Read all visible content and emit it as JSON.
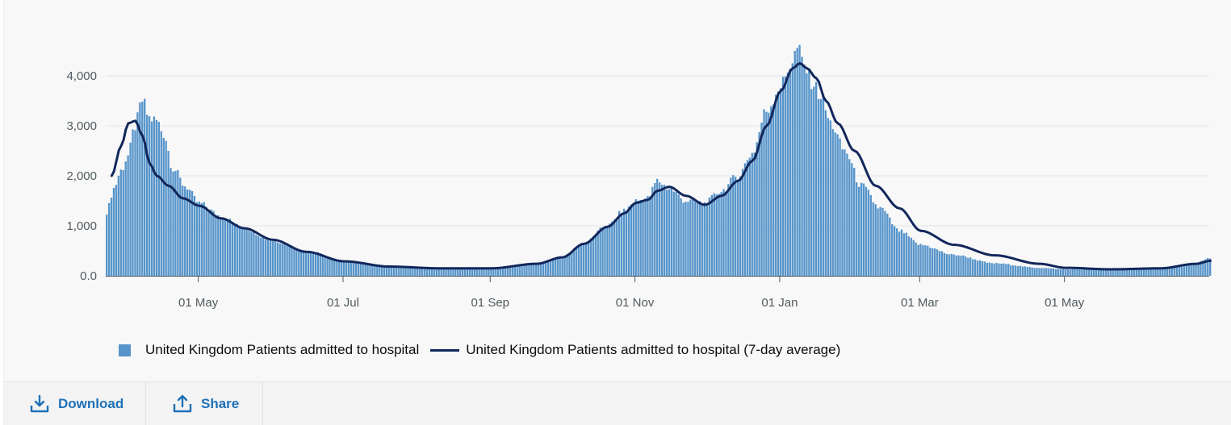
{
  "chart_data": {
    "type": "bar",
    "ylim": [
      0,
      4600
    ],
    "grid": true,
    "legend_position": "bottom-left",
    "y_ticks": [
      "4,000",
      "3,000",
      "2,000",
      "1,000",
      "0.0"
    ],
    "y_tick_values": [
      4000,
      3000,
      2000,
      1000,
      0
    ],
    "x_ticks": [
      "01 May",
      "01 Jul",
      "01 Sep",
      "01 Nov",
      "01 Jan",
      "01 Mar",
      "01 May"
    ],
    "x_tick_dates": [
      "2020-05-01",
      "2020-07-01",
      "2020-09-01",
      "2020-11-01",
      "2021-01-01",
      "2021-03-01",
      "2021-05-01"
    ],
    "x_range": [
      "2020-03-23",
      "2021-07-01"
    ],
    "colors": {
      "bars": "#5694ca",
      "line": "#12275b",
      "grid": "#e4e4e4"
    },
    "series": [
      {
        "name": "United Kingdom Patients admitted to hospital",
        "kind": "bar",
        "x": [
          "2020-03-23",
          "2020-03-26",
          "2020-03-29",
          "2020-04-01",
          "2020-04-04",
          "2020-04-07",
          "2020-04-10",
          "2020-04-13",
          "2020-04-16",
          "2020-04-20",
          "2020-04-25",
          "2020-05-01",
          "2020-05-10",
          "2020-05-20",
          "2020-06-01",
          "2020-06-15",
          "2020-07-01",
          "2020-07-20",
          "2020-08-10",
          "2020-09-01",
          "2020-09-20",
          "2020-10-01",
          "2020-10-10",
          "2020-10-20",
          "2020-10-27",
          "2020-11-01",
          "2020-11-06",
          "2020-11-10",
          "2020-11-15",
          "2020-11-22",
          "2020-11-30",
          "2020-12-07",
          "2020-12-14",
          "2020-12-20",
          "2020-12-26",
          "2021-01-01",
          "2021-01-06",
          "2021-01-08",
          "2021-01-11",
          "2021-01-14",
          "2021-01-18",
          "2021-01-22",
          "2021-01-28",
          "2021-02-04",
          "2021-02-12",
          "2021-02-20",
          "2021-03-01",
          "2021-03-15",
          "2021-04-01",
          "2021-04-20",
          "2021-05-01",
          "2021-05-20",
          "2021-06-10",
          "2021-06-25",
          "2021-07-01"
        ],
        "values": [
          1280,
          1750,
          2100,
          2400,
          3000,
          3500,
          3150,
          3100,
          2850,
          2150,
          1800,
          1450,
          1200,
          950,
          700,
          500,
          300,
          180,
          150,
          160,
          250,
          380,
          650,
          1000,
          1300,
          1500,
          1550,
          1900,
          1750,
          1500,
          1450,
          1700,
          2000,
          2450,
          3300,
          3800,
          4300,
          4550,
          4200,
          3900,
          3600,
          3050,
          2500,
          1800,
          1350,
          900,
          620,
          420,
          250,
          160,
          130,
          120,
          150,
          260,
          350
        ]
      },
      {
        "name": "United Kingdom Patients admitted to hospital (7-day average)",
        "kind": "line",
        "x": [
          "2020-03-25",
          "2020-03-29",
          "2020-04-01",
          "2020-04-04",
          "2020-04-07",
          "2020-04-10",
          "2020-04-13",
          "2020-04-18",
          "2020-04-24",
          "2020-05-01",
          "2020-05-10",
          "2020-05-20",
          "2020-06-01",
          "2020-06-15",
          "2020-07-01",
          "2020-07-20",
          "2020-08-10",
          "2020-09-01",
          "2020-09-20",
          "2020-10-01",
          "2020-10-10",
          "2020-10-20",
          "2020-10-27",
          "2020-11-01",
          "2020-11-06",
          "2020-11-10",
          "2020-11-15",
          "2020-11-22",
          "2020-11-30",
          "2020-12-07",
          "2020-12-14",
          "2020-12-20",
          "2020-12-26",
          "2021-01-01",
          "2021-01-06",
          "2021-01-09",
          "2021-01-12",
          "2021-01-16",
          "2021-01-20",
          "2021-01-25",
          "2021-02-01",
          "2021-02-10",
          "2021-02-20",
          "2021-03-01",
          "2021-03-15",
          "2021-04-01",
          "2021-04-20",
          "2021-05-01",
          "2021-05-20",
          "2021-06-10",
          "2021-06-25",
          "2021-07-01"
        ],
        "values": [
          2000,
          2600,
          3050,
          3100,
          2800,
          2250,
          2000,
          1800,
          1550,
          1400,
          1150,
          950,
          720,
          480,
          290,
          185,
          150,
          150,
          240,
          370,
          640,
          980,
          1250,
          1460,
          1520,
          1700,
          1780,
          1600,
          1420,
          1600,
          1900,
          2300,
          3000,
          3700,
          4150,
          4250,
          4150,
          3950,
          3500,
          3050,
          2500,
          1800,
          1350,
          900,
          620,
          410,
          240,
          160,
          130,
          150,
          240,
          300
        ]
      }
    ]
  },
  "legend": {
    "bars_label": "United Kingdom Patients admitted to hospital",
    "line_label": "United Kingdom Patients admitted to hospital (7-day average)"
  },
  "toolbar": {
    "download_label": "Download",
    "share_label": "Share",
    "download_icon": "download-icon",
    "share_icon": "share-icon"
  }
}
